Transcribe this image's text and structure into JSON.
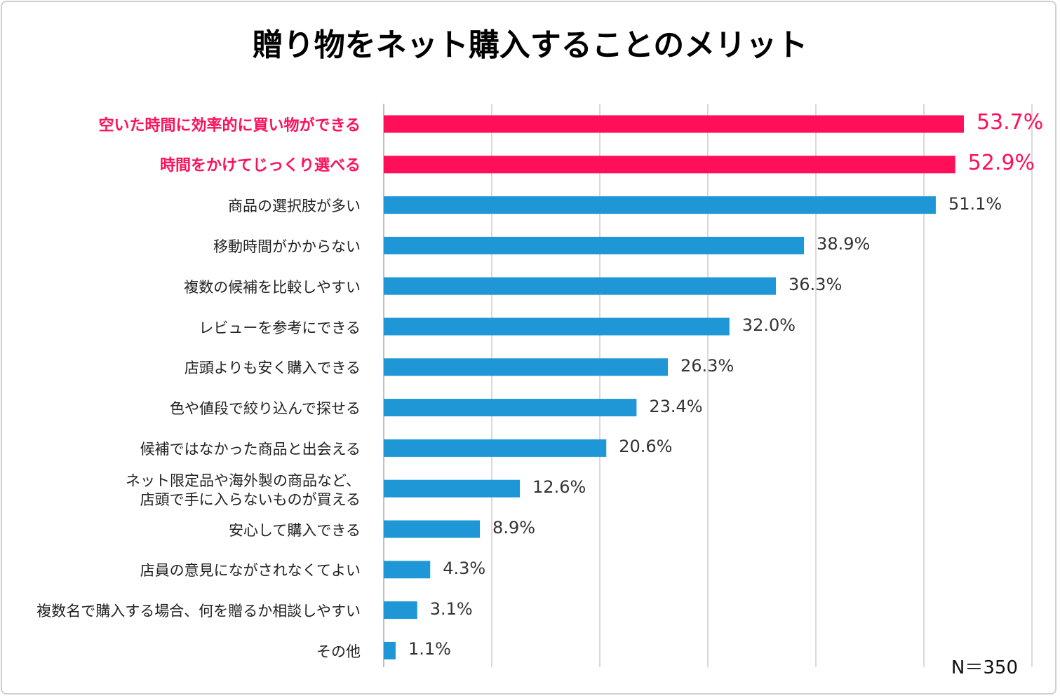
{
  "chart_data": {
    "type": "bar",
    "orientation": "horizontal",
    "title": "贈り物をネット購入することのメリット",
    "categories": [
      "空いた時間に効率的に買い物ができる",
      "時間をかけてじっくり選べる",
      "商品の選択肢が多い",
      "移動時間がかからない",
      "複数の候補を比較しやすい",
      "レビューを参考にできる",
      "店頭よりも安く購入できる",
      "色や値段で絞り込んで探せる",
      "候補ではなかった商品と出会える",
      "ネット限定品や海外製の商品など、\n店頭で手に入らないものが買える",
      "安心して購入できる",
      "店員の意見にながされなくてよい",
      "複数名で購入する場合、何を贈るか相談しやすい",
      "その他"
    ],
    "values": [
      53.7,
      52.9,
      51.1,
      38.9,
      36.3,
      32.0,
      26.3,
      23.4,
      20.6,
      12.6,
      8.9,
      4.3,
      3.1,
      1.1
    ],
    "value_labels": [
      "53.7%",
      "52.9%",
      "51.1%",
      "38.9%",
      "36.3%",
      "32.0%",
      "26.3%",
      "23.4%",
      "20.6%",
      "12.6%",
      "8.9%",
      "4.3%",
      "3.1%",
      "1.1%"
    ],
    "highlighted": [
      true,
      true,
      false,
      false,
      false,
      false,
      false,
      false,
      false,
      false,
      false,
      false,
      false,
      false
    ],
    "xlim": [
      0,
      60
    ],
    "grid": "vertical",
    "note": "N＝350",
    "colors": {
      "highlight": "#ff0f5a",
      "bar": "#1f97d6",
      "grid": "#d9d9d9"
    }
  }
}
